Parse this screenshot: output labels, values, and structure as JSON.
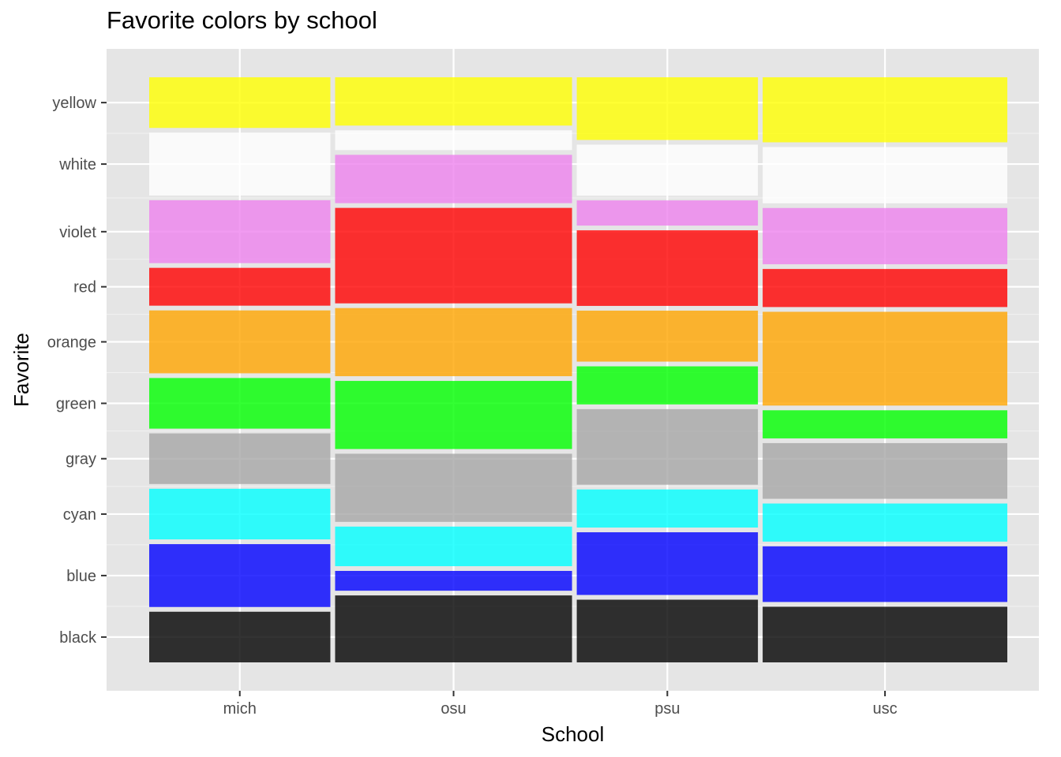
{
  "chart_data": {
    "type": "mosaic",
    "title": "Favorite colors by school",
    "xlabel": "School",
    "ylabel": "Favorite",
    "x_categories": [
      "mich",
      "osu",
      "psu",
      "usc"
    ],
    "school_share": [
      0.234,
      0.306,
      0.234,
      0.316
    ],
    "y_categories": [
      "black",
      "blue",
      "cyan",
      "gray",
      "green",
      "orange",
      "red",
      "violet",
      "white",
      "yellow"
    ],
    "fill_colors": {
      "black": "#000000",
      "blue": "#0000ff",
      "cyan": "#00ffff",
      "gray": "#a6a6a6",
      "green": "#00ff00",
      "orange": "#ffa500",
      "red": "#ff0000",
      "violet": "#ee82ee",
      "white": "#ffffff",
      "yellow": "#ffff00"
    },
    "fill_alpha": 0.8,
    "series": [
      {
        "name": "mich",
        "proportions": {
          "black": 0.087,
          "blue": 0.108,
          "cyan": 0.087,
          "gray": 0.087,
          "green": 0.087,
          "orange": 0.108,
          "red": 0.065,
          "violet": 0.108,
          "white": 0.108,
          "yellow": 0.087
        }
      },
      {
        "name": "osu",
        "proportions": {
          "black": 0.115,
          "blue": 0.034,
          "cyan": 0.068,
          "gray": 0.117,
          "green": 0.117,
          "orange": 0.117,
          "red": 0.164,
          "violet": 0.083,
          "white": 0.034,
          "yellow": 0.083
        }
      },
      {
        "name": "psu",
        "proportions": {
          "black": 0.107,
          "blue": 0.107,
          "cyan": 0.065,
          "gray": 0.129,
          "green": 0.065,
          "orange": 0.087,
          "red": 0.129,
          "violet": 0.043,
          "white": 0.087,
          "yellow": 0.107
        }
      },
      {
        "name": "usc",
        "proportions": {
          "black": 0.095,
          "blue": 0.095,
          "cyan": 0.065,
          "gray": 0.095,
          "green": 0.048,
          "orange": 0.16,
          "red": 0.065,
          "violet": 0.096,
          "white": 0.096,
          "yellow": 0.111
        }
      }
    ],
    "grid": true,
    "legend": "none"
  }
}
